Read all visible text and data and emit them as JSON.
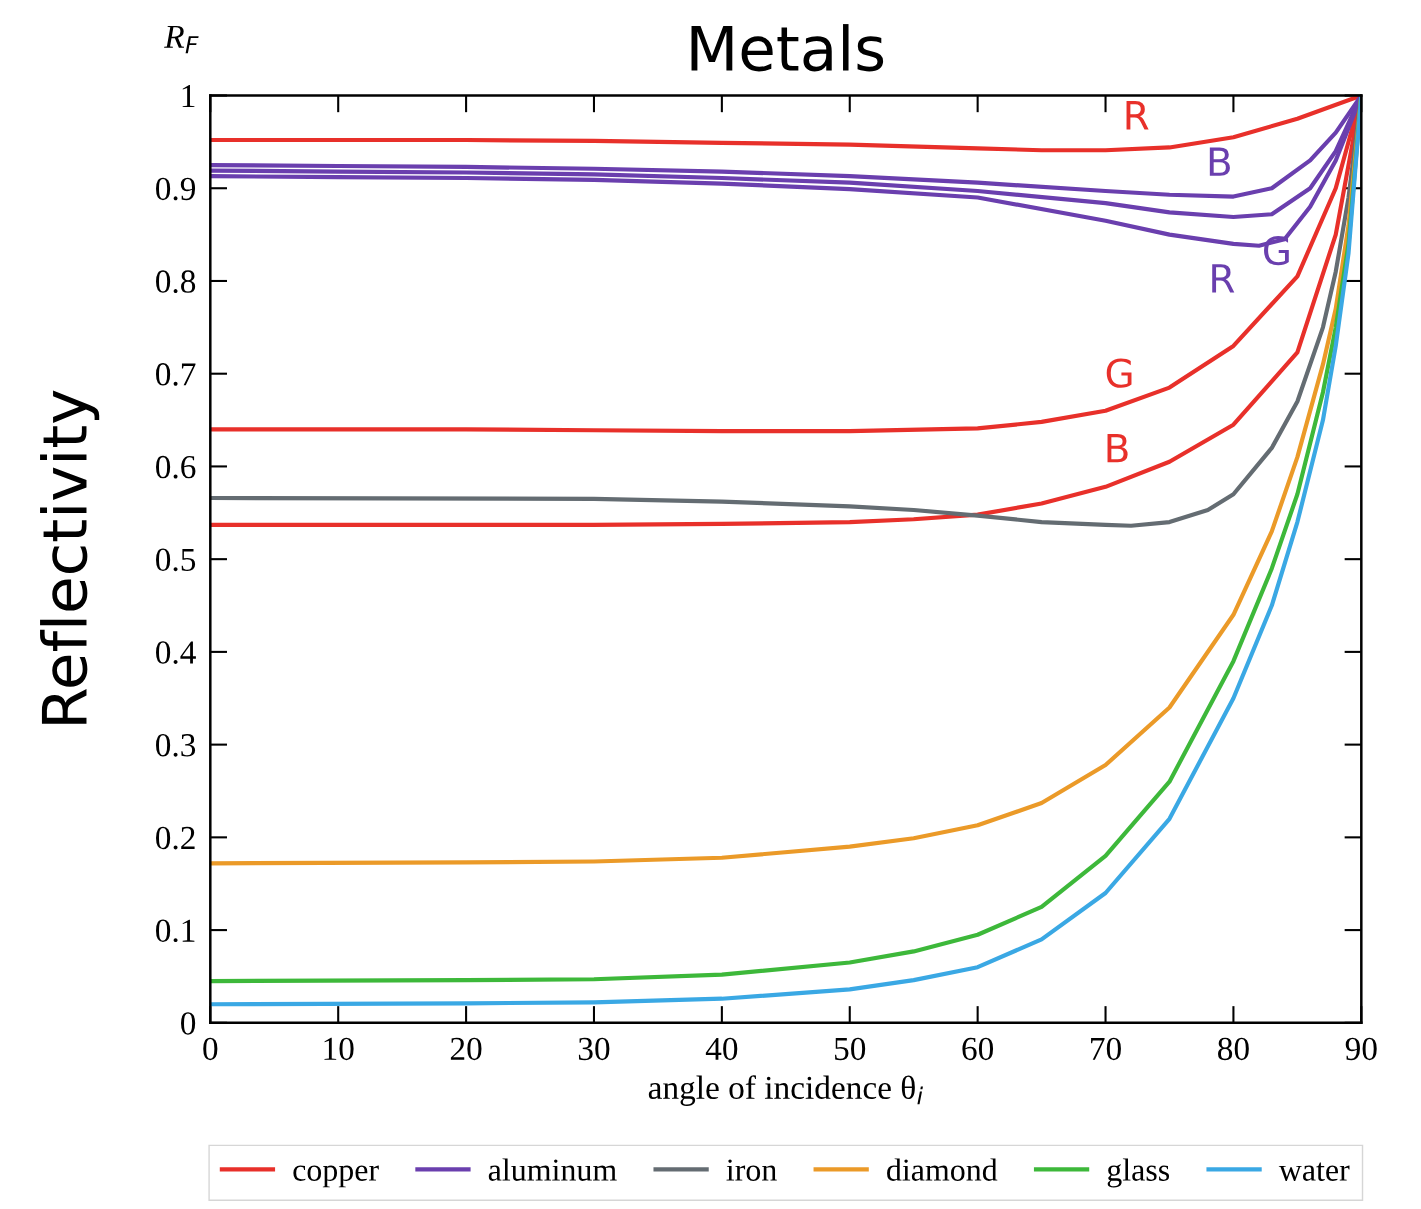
{
  "chart_data": {
    "type": "line",
    "title": "Metals",
    "xlabel": "angle of incidence θ$_{i}$",
    "ylabel": "Reflectivity",
    "xlim": [
      0,
      90
    ],
    "xticks": [
      0,
      10,
      20,
      30,
      40,
      50,
      60,
      70,
      80,
      90
    ],
    "ylim": [
      0,
      1
    ],
    "yticks": [
      0,
      0.1,
      0.2,
      0.3,
      0.4,
      0.5,
      0.6,
      0.7,
      0.8,
      0.9,
      1
    ],
    "grid": false,
    "legend": "bottom",
    "marker": "none",
    "line_style": "solid",
    "series": [
      {
        "name": "copper",
        "color": "#e8302a",
        "x": [
          0,
          10,
          20,
          30,
          40,
          50,
          60,
          65,
          70,
          75,
          80,
          85,
          90
        ],
        "values": [
          0.952,
          0.952,
          0.952,
          0.951,
          0.949,
          0.947,
          0.943,
          0.941,
          0.941,
          0.944,
          0.955,
          0.975,
          1
        ]
      },
      {
        "color": "#e8302a",
        "x": [
          0,
          10,
          20,
          30,
          40,
          50,
          60,
          65,
          70,
          75,
          80,
          85,
          88,
          90
        ],
        "values": [
          0.64,
          0.64,
          0.64,
          0.639,
          0.638,
          0.638,
          0.641,
          0.648,
          0.66,
          0.685,
          0.73,
          0.805,
          0.9,
          1
        ]
      },
      {
        "color": "#e8302a",
        "x": [
          0,
          10,
          20,
          30,
          40,
          50,
          55,
          60,
          65,
          70,
          75,
          80,
          85,
          88,
          90
        ],
        "values": [
          0.537,
          0.537,
          0.537,
          0.537,
          0.538,
          0.54,
          0.543,
          0.548,
          0.56,
          0.578,
          0.605,
          0.645,
          0.723,
          0.85,
          1
        ]
      },
      {
        "name": "aluminum",
        "color": "#6a3fae",
        "x": [
          0,
          10,
          20,
          30,
          40,
          50,
          60,
          70,
          75,
          80,
          83,
          86,
          88,
          90
        ],
        "values": [
          0.925,
          0.924,
          0.923,
          0.921,
          0.918,
          0.913,
          0.906,
          0.897,
          0.893,
          0.891,
          0.9,
          0.93,
          0.96,
          1
        ]
      },
      {
        "color": "#6a3fae",
        "x": [
          0,
          10,
          20,
          30,
          40,
          50,
          60,
          70,
          75,
          80,
          83,
          86,
          88,
          90
        ],
        "values": [
          0.919,
          0.918,
          0.917,
          0.915,
          0.911,
          0.906,
          0.897,
          0.884,
          0.874,
          0.869,
          0.872,
          0.9,
          0.94,
          1
        ]
      },
      {
        "color": "#6a3fae",
        "x": [
          0,
          10,
          20,
          30,
          40,
          50,
          60,
          70,
          75,
          80,
          82,
          84,
          86,
          88,
          90
        ],
        "values": [
          0.913,
          0.912,
          0.911,
          0.909,
          0.905,
          0.899,
          0.89,
          0.865,
          0.85,
          0.84,
          0.838,
          0.845,
          0.88,
          0.93,
          1
        ]
      },
      {
        "name": "iron",
        "color": "#646c72",
        "x": [
          0,
          30,
          40,
          50,
          55,
          60,
          65,
          70,
          72,
          75,
          78,
          80,
          83,
          85,
          87,
          88,
          89,
          90
        ],
        "values": [
          0.566,
          0.565,
          0.562,
          0.557,
          0.553,
          0.547,
          0.54,
          0.537,
          0.536,
          0.54,
          0.553,
          0.57,
          0.62,
          0.67,
          0.75,
          0.81,
          0.89,
          1
        ]
      },
      {
        "name": "diamond",
        "color": "#eb9a28",
        "x": [
          0,
          20,
          30,
          40,
          50,
          55,
          60,
          65,
          70,
          75,
          80,
          83,
          85,
          87,
          88,
          89,
          90
        ],
        "values": [
          0.172,
          0.173,
          0.174,
          0.178,
          0.19,
          0.199,
          0.213,
          0.237,
          0.278,
          0.34,
          0.44,
          0.53,
          0.61,
          0.71,
          0.77,
          0.86,
          1
        ]
      },
      {
        "name": "glass",
        "color": "#3db83a",
        "x": [
          0,
          20,
          30,
          40,
          50,
          55,
          60,
          65,
          70,
          75,
          80,
          83,
          85,
          87,
          88,
          89,
          90
        ],
        "values": [
          0.045,
          0.046,
          0.047,
          0.052,
          0.065,
          0.077,
          0.095,
          0.125,
          0.18,
          0.26,
          0.39,
          0.49,
          0.57,
          0.68,
          0.75,
          0.84,
          1
        ]
      },
      {
        "name": "water",
        "color": "#3aa8e4",
        "x": [
          0,
          20,
          30,
          40,
          50,
          55,
          60,
          65,
          70,
          75,
          80,
          83,
          85,
          87,
          88,
          89,
          90
        ],
        "values": [
          0.02,
          0.021,
          0.022,
          0.026,
          0.036,
          0.046,
          0.06,
          0.09,
          0.14,
          0.22,
          0.35,
          0.45,
          0.54,
          0.65,
          0.73,
          0.83,
          1
        ]
      }
    ],
    "annotations": [
      "R$_{F}$",
      {
        "text": "R",
        "x": 72.4,
        "y": 0.942
      },
      {
        "text": "B",
        "x": 78.9,
        "y": 0.892
      },
      {
        "text": "G",
        "x": 83.4,
        "y": 0.871
      },
      {
        "text": "R",
        "x": 79.1,
        "y": 0.841
      },
      {
        "text": "G",
        "x": 71.1,
        "y": 0.664
      },
      {
        "text": "B",
        "x": 70.9,
        "y": 0.583
      }
    ]
  }
}
